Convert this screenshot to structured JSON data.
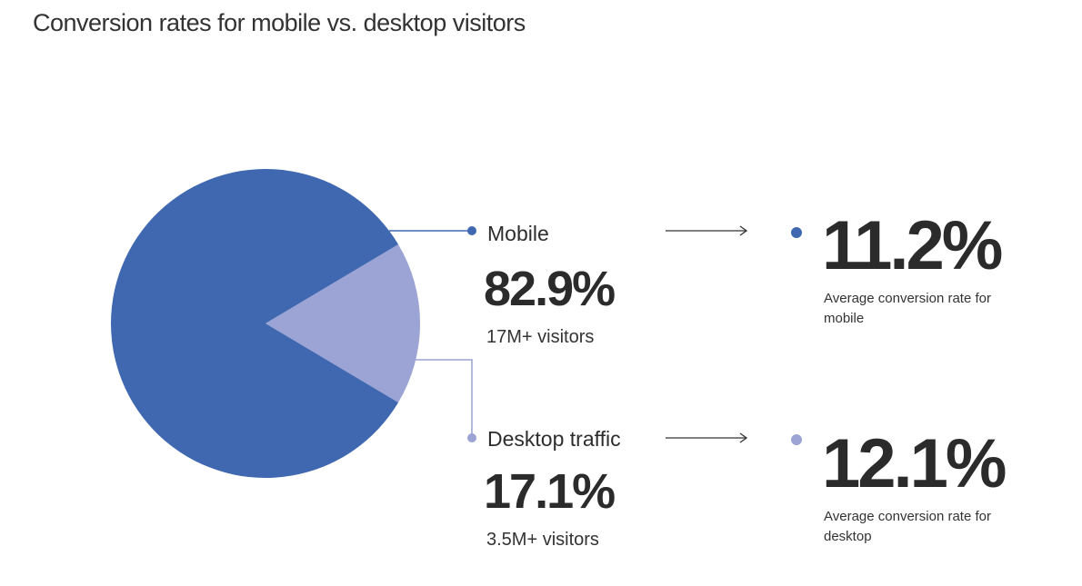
{
  "chart_data": {
    "type": "pie",
    "title": "Conversion rates for mobile vs. desktop visitors",
    "slices": [
      {
        "label": "Mobile",
        "value": 82.9,
        "value_label": "82.9%",
        "visitors": "17M+ visitors",
        "color": "#3f68b0",
        "conversion_rate": 11.2,
        "conversion_label": "11.2%",
        "conversion_desc": "Average conversion rate for mobile"
      },
      {
        "label": "Desktop traffic",
        "value": 17.1,
        "value_label": "17.1%",
        "visitors": "3.5M+ visitors",
        "color": "#9ba4d4",
        "conversion_rate": 12.1,
        "conversion_label": "12.1%",
        "conversion_desc": "Average conversion rate for desktop"
      }
    ]
  }
}
